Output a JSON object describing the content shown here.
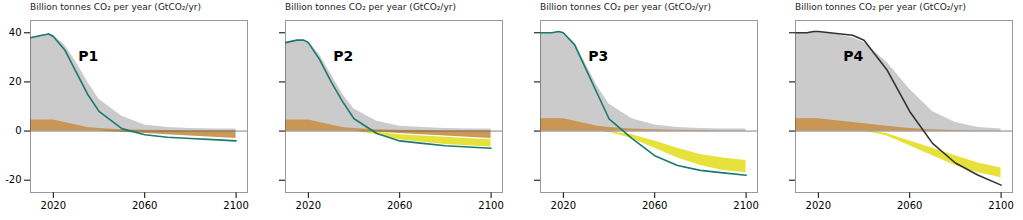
{
  "chart_data": [
    {
      "type": "area",
      "title": "Billion tonnes CO₂ per year (GtCO₂/yr)",
      "annotations": [
        "P1"
      ],
      "x": [
        2010,
        2015,
        2018,
        2020,
        2025,
        2030,
        2035,
        2040,
        2050,
        2060,
        2070,
        2080,
        2090,
        2100
      ],
      "xlim": [
        2010,
        2105
      ],
      "xticks": [
        2020,
        2060,
        2100
      ],
      "ylim": [
        -25,
        45
      ],
      "yticks": [
        -20,
        0,
        20,
        40
      ],
      "reference_lines": [
        {
          "y": 0,
          "color": "#666666"
        }
      ],
      "series": [
        {
          "type": "area",
          "color": "#c8c8c8",
          "upper": [
            38,
            39,
            39.5,
            39,
            35,
            28,
            20,
            13,
            6,
            2.5,
            1.5,
            1,
            0.8,
            0.8
          ],
          "lower": [
            0,
            0,
            0,
            0,
            0,
            0,
            0,
            0,
            0,
            0,
            0,
            0,
            0,
            0
          ]
        },
        {
          "type": "area",
          "color": "#c8924e",
          "upper": [
            4.5,
            4.5,
            4.5,
            4.5,
            3.5,
            2.5,
            1.5,
            1,
            0.5,
            0.3,
            0.2,
            0.1,
            0.1,
            0.1
          ],
          "lower": [
            0,
            0,
            0,
            0,
            0,
            0,
            0,
            0,
            -0.5,
            -1,
            -1.5,
            -2,
            -2.5,
            -3
          ]
        },
        {
          "type": "line",
          "color": "#1a7a6e",
          "values": [
            38,
            39,
            39.5,
            38.5,
            33,
            24,
            15,
            8,
            1,
            -1.5,
            -2.5,
            -3,
            -3.5,
            -4
          ]
        }
      ]
    },
    {
      "type": "area",
      "title": "Billion tonnes CO₂ per year (GtCO₂/yr)",
      "annotations": [
        "P2"
      ],
      "tick_labels": "x",
      "x": [
        2010,
        2015,
        2018,
        2020,
        2025,
        2030,
        2035,
        2040,
        2050,
        2060,
        2070,
        2080,
        2090,
        2100
      ],
      "xlim": [
        2010,
        2105
      ],
      "xticks": [
        2020,
        2060,
        2100
      ],
      "ylim": [
        -25,
        45
      ],
      "yticks": [
        -20,
        0,
        20,
        40
      ],
      "reference_lines": [
        {
          "y": 0,
          "color": "#666666"
        }
      ],
      "series": [
        {
          "type": "area",
          "color": "#c8c8c8",
          "upper": [
            36,
            37,
            37,
            36.5,
            31,
            23,
            15,
            9,
            4,
            2,
            1.5,
            1,
            0.8,
            0.8
          ],
          "lower": [
            0,
            0,
            0,
            0,
            0,
            0,
            0,
            0,
            0,
            0,
            0,
            0,
            0,
            0
          ]
        },
        {
          "type": "area",
          "color": "#c8924e",
          "upper": [
            4.5,
            4.5,
            4.5,
            4.5,
            3.5,
            2.5,
            1.5,
            1,
            0.5,
            0.3,
            0.2,
            0.1,
            0.1,
            0.1
          ],
          "lower": [
            0,
            0,
            0,
            0,
            0,
            0,
            0,
            0,
            -0.5,
            -1,
            -1.5,
            -2,
            -2.5,
            -3
          ]
        },
        {
          "type": "area",
          "color": "#e5e030",
          "upper": [
            0,
            0,
            0,
            0,
            0,
            0,
            0,
            0,
            -1.5,
            -3.5,
            -4.5,
            -5.5,
            -6,
            -6.5
          ],
          "lower": [
            0,
            0,
            0,
            0,
            0,
            0,
            0,
            0,
            -0.5,
            -1.5,
            -2,
            -2.5,
            -3,
            -3.5
          ]
        },
        {
          "type": "line",
          "color": "#1a7a6e",
          "values": [
            36,
            37,
            37,
            36,
            29,
            20,
            12,
            5,
            -1,
            -4,
            -5,
            -6,
            -6.5,
            -7
          ]
        }
      ]
    },
    {
      "type": "area",
      "title": "Billion tonnes CO₂ per year (GtCO₂/yr)",
      "annotations": [
        "P3"
      ],
      "tick_labels": "x",
      "x": [
        2010,
        2015,
        2018,
        2020,
        2025,
        2030,
        2035,
        2040,
        2050,
        2060,
        2070,
        2080,
        2090,
        2100
      ],
      "xlim": [
        2010,
        2105
      ],
      "xticks": [
        2020,
        2060,
        2100
      ],
      "ylim": [
        -25,
        45
      ],
      "yticks": [
        -20,
        0,
        20,
        40
      ],
      "reference_lines": [
        {
          "y": 0,
          "color": "#666666"
        }
      ],
      "series": [
        {
          "type": "area",
          "color": "#c8c8c8",
          "upper": [
            40,
            40,
            40.5,
            40,
            36,
            27,
            18,
            11,
            5,
            2.5,
            1.5,
            1,
            0.8,
            0.8
          ],
          "lower": [
            0,
            0,
            0,
            0,
            0,
            0,
            0,
            0,
            0,
            0,
            0,
            0,
            0,
            0
          ]
        },
        {
          "type": "area",
          "color": "#c8924e",
          "upper": [
            5,
            5,
            5,
            5,
            4,
            3,
            2,
            1.5,
            0.8,
            0.5,
            0.3,
            0.2,
            0.1,
            0.1
          ],
          "lower": [
            0,
            0,
            0,
            0,
            0,
            0,
            0,
            0,
            0,
            0,
            0,
            0,
            0,
            0
          ]
        },
        {
          "type": "area",
          "color": "#e5e030",
          "upper": [
            0,
            0,
            0,
            0,
            0,
            0,
            0,
            -0.5,
            -3,
            -7,
            -11,
            -14,
            -16,
            -17
          ],
          "lower": [
            0,
            0,
            0,
            0,
            0,
            0,
            0,
            -0.2,
            -1.5,
            -4,
            -7,
            -9.5,
            -11,
            -12
          ]
        },
        {
          "type": "line",
          "color": "#1a7a6e",
          "values": [
            40,
            40,
            40.5,
            40,
            35,
            25,
            15,
            5,
            -3,
            -10,
            -14,
            -16,
            -17,
            -18
          ]
        }
      ]
    },
    {
      "type": "area",
      "title": "Billion tonnes CO₂ per year (GtCO₂/yr)",
      "annotations": [
        "P4"
      ],
      "tick_labels": "x",
      "x": [
        2010,
        2015,
        2018,
        2020,
        2025,
        2030,
        2035,
        2040,
        2050,
        2060,
        2070,
        2080,
        2090,
        2100
      ],
      "xlim": [
        2010,
        2105
      ],
      "xticks": [
        2020,
        2060,
        2100
      ],
      "ylim": [
        -25,
        45
      ],
      "yticks": [
        -20,
        0,
        20,
        40
      ],
      "reference_lines": [
        {
          "y": 0,
          "color": "#666666"
        }
      ],
      "series": [
        {
          "type": "area",
          "color": "#c8c8c8",
          "upper": [
            40,
            40,
            40.5,
            40.5,
            40,
            39,
            38,
            36,
            28,
            17,
            8,
            3.5,
            1.5,
            0.8
          ],
          "lower": [
            0,
            0,
            0,
            0,
            0,
            0,
            0,
            0,
            0,
            0,
            0,
            0,
            0,
            0
          ]
        },
        {
          "type": "area",
          "color": "#c8924e",
          "upper": [
            5,
            5,
            5,
            5,
            4.5,
            4,
            3.5,
            3,
            2,
            1,
            0.5,
            0.2,
            0.1,
            0.1
          ],
          "lower": [
            0,
            0,
            0,
            0,
            0,
            0,
            0,
            0,
            0,
            0,
            0,
            0,
            0,
            0
          ]
        },
        {
          "type": "area",
          "color": "#e5e030",
          "upper": [
            0,
            0,
            0,
            0,
            0,
            0,
            0,
            0,
            -2,
            -6,
            -10,
            -14,
            -17,
            -19
          ],
          "lower": [
            0,
            0,
            0,
            0,
            0,
            0,
            0,
            0,
            -1,
            -4,
            -7,
            -10,
            -13,
            -15
          ]
        },
        {
          "type": "line",
          "color": "#333333",
          "values": [
            40,
            40,
            40.5,
            40.5,
            40,
            39.5,
            39,
            37,
            25,
            8,
            -5,
            -13,
            -18,
            -22
          ]
        }
      ]
    }
  ]
}
